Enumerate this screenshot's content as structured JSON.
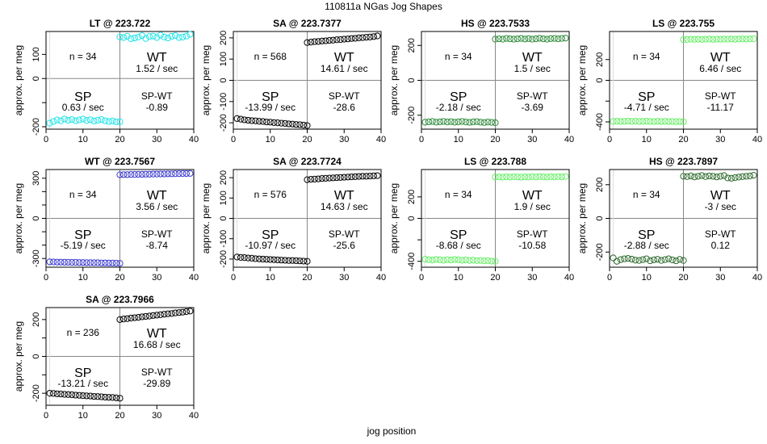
{
  "figure": {
    "title": "110811a    NGas Jog Shapes",
    "xlabel": "jog position",
    "ylabel": "approx. per meg"
  },
  "chart_data": [
    {
      "type": "scatter",
      "title": "LT @ 223.722",
      "color": "#22e4e8",
      "xlim": [
        0,
        40
      ],
      "ylim": [
        -210,
        195
      ],
      "yticks": [
        -200,
        -100,
        0,
        100
      ],
      "ytick_labels": [
        "-200",
        "",
        "0",
        "100"
      ],
      "xticks": [
        0,
        10,
        20,
        30,
        40
      ],
      "n_text": "n = 34",
      "wt_label": "WT",
      "wt_rate": "1.52 / sec",
      "sp_label": "SP",
      "sp_rate": "0.63 / sec",
      "spwt_label": "SP-WT",
      "spwt_value": "-0.89",
      "sp_x": [
        1,
        2,
        3,
        4,
        5,
        6,
        7,
        8,
        9,
        10,
        11,
        12,
        13,
        14,
        15,
        16,
        17,
        18,
        19,
        20
      ],
      "sp_y": [
        -185,
        -178,
        -172,
        -175,
        -168,
        -173,
        -170,
        -175,
        -172,
        -168,
        -174,
        -171,
        -176,
        -173,
        -170,
        -175,
        -178,
        -176,
        -180,
        -179
      ],
      "wt_x": [
        20,
        21,
        22,
        23,
        24,
        25,
        26,
        27,
        28,
        29,
        30,
        31,
        32,
        33,
        34,
        35,
        36,
        37,
        38,
        39
      ],
      "wt_y": [
        172,
        170,
        175,
        165,
        168,
        172,
        178,
        166,
        174,
        176,
        170,
        180,
        172,
        168,
        175,
        178,
        170,
        172,
        176,
        183
      ]
    },
    {
      "type": "scatter",
      "title": "SA @ 223.7377",
      "color": "#000000",
      "xlim": [
        0,
        40
      ],
      "ylim": [
        -230,
        230
      ],
      "yticks": [
        -200,
        -100,
        0,
        100,
        200
      ],
      "ytick_labels": [
        "-200",
        "-100",
        "0",
        "100",
        "200"
      ],
      "xticks": [
        0,
        10,
        20,
        30,
        40
      ],
      "n_text": "n = 568",
      "wt_label": "WT",
      "wt_rate": "14.61 / sec",
      "sp_label": "SP",
      "sp_rate": "-13.99 / sec",
      "spwt_label": "SP-WT",
      "spwt_value": "-28.6",
      "sp_x": [
        1,
        2,
        3,
        4,
        5,
        6,
        7,
        8,
        9,
        10,
        11,
        12,
        13,
        14,
        15,
        16,
        17,
        18,
        19,
        20
      ],
      "sp_y": [
        -180,
        -183,
        -186,
        -188,
        -190,
        -191,
        -193,
        -194,
        -196,
        -197,
        -199,
        -200,
        -202,
        -203,
        -205,
        -206,
        -208,
        -209,
        -211,
        -213
      ],
      "wt_x": [
        20,
        21,
        22,
        23,
        24,
        25,
        26,
        27,
        28,
        29,
        30,
        31,
        32,
        33,
        34,
        35,
        36,
        37,
        38,
        39
      ],
      "wt_y": [
        178,
        180,
        182,
        183,
        185,
        186,
        188,
        189,
        191,
        192,
        194,
        195,
        197,
        198,
        200,
        201,
        203,
        204,
        206,
        209
      ]
    },
    {
      "type": "scatter",
      "title": "HS @ 223.7533",
      "color": "#2e8b3a",
      "xlim": [
        0,
        40
      ],
      "ylim": [
        -280,
        280
      ],
      "yticks": [
        -200,
        0,
        200
      ],
      "ytick_labels": [
        "-200",
        "0",
        "200"
      ],
      "xticks": [
        0,
        10,
        20,
        30,
        40
      ],
      "n_text": "n = 34",
      "wt_label": "WT",
      "wt_rate": "1.5 / sec",
      "sp_label": "SP",
      "sp_rate": "-2.18 / sec",
      "spwt_label": "SP-WT",
      "spwt_value": "-3.69",
      "sp_x": [
        1,
        2,
        3,
        4,
        5,
        6,
        7,
        8,
        9,
        10,
        11,
        12,
        13,
        14,
        15,
        16,
        17,
        18,
        19,
        20
      ],
      "sp_y": [
        -240,
        -238,
        -236,
        -240,
        -238,
        -236,
        -239,
        -237,
        -240,
        -238,
        -236,
        -239,
        -241,
        -238,
        -237,
        -240,
        -242,
        -239,
        -241,
        -243
      ],
      "wt_x": [
        20,
        21,
        22,
        23,
        24,
        25,
        26,
        27,
        28,
        29,
        30,
        31,
        32,
        33,
        34,
        35,
        36,
        37,
        38,
        39
      ],
      "wt_y": [
        236,
        238,
        236,
        240,
        238,
        236,
        238,
        240,
        237,
        239,
        236,
        238,
        241,
        238,
        236,
        239,
        240,
        238,
        240,
        242
      ]
    },
    {
      "type": "scatter",
      "title": "LS @ 223.755",
      "color": "#66ee66",
      "xlim": [
        0,
        40
      ],
      "ylim": [
        -470,
        470
      ],
      "yticks": [
        -400,
        -200,
        0,
        200
      ],
      "ytick_labels": [
        "-400",
        "",
        "0",
        "200"
      ],
      "xticks": [
        0,
        10,
        20,
        30,
        40
      ],
      "n_text": "n = 34",
      "wt_label": "WT",
      "wt_rate": "6.46 / sec",
      "sp_label": "SP",
      "sp_rate": "-4.71 / sec",
      "spwt_label": "SP-WT",
      "spwt_value": "-11.17",
      "sp_x": [
        1,
        2,
        3,
        4,
        5,
        6,
        7,
        8,
        9,
        10,
        11,
        12,
        13,
        14,
        15,
        16,
        17,
        18,
        19,
        20
      ],
      "sp_y": [
        -395,
        -393,
        -396,
        -394,
        -392,
        -395,
        -393,
        -396,
        -394,
        -393,
        -395,
        -397,
        -394,
        -396,
        -395,
        -397,
        -396,
        -398,
        -397,
        -399
      ],
      "wt_x": [
        20,
        21,
        22,
        23,
        24,
        25,
        26,
        27,
        28,
        29,
        30,
        31,
        32,
        33,
        34,
        35,
        36,
        37,
        38,
        39
      ],
      "wt_y": [
        392,
        393,
        395,
        394,
        396,
        393,
        395,
        397,
        394,
        396,
        395,
        397,
        396,
        398,
        395,
        397,
        398,
        396,
        399,
        400
      ]
    },
    {
      "type": "scatter",
      "title": "WT @ 223.7567",
      "color": "#3a3ad0",
      "xlim": [
        0,
        40
      ],
      "ylim": [
        -365,
        365
      ],
      "yticks": [
        -300,
        -200,
        -100,
        0,
        100,
        200,
        300
      ],
      "ytick_labels": [
        "-300",
        "",
        "",
        "0",
        "",
        "",
        "300"
      ],
      "xticks": [
        0,
        10,
        20,
        30,
        40
      ],
      "n_text": "n = 34",
      "wt_label": "WT",
      "wt_rate": "3.56 / sec",
      "sp_label": "SP",
      "sp_rate": "-5.19 / sec",
      "spwt_label": "SP-WT",
      "spwt_value": "-8.74",
      "sp_x": [
        1,
        2,
        3,
        4,
        5,
        6,
        7,
        8,
        9,
        10,
        11,
        12,
        13,
        14,
        15,
        16,
        17,
        18,
        19,
        20
      ],
      "sp_y": [
        -325,
        -326,
        -327,
        -327,
        -328,
        -328,
        -329,
        -329,
        -330,
        -330,
        -331,
        -331,
        -332,
        -332,
        -333,
        -333,
        -334,
        -334,
        -335,
        -336
      ],
      "wt_x": [
        20,
        21,
        22,
        23,
        24,
        25,
        26,
        27,
        28,
        29,
        30,
        31,
        32,
        33,
        34,
        35,
        36,
        37,
        38,
        39
      ],
      "wt_y": [
        326,
        327,
        327,
        328,
        328,
        329,
        329,
        330,
        330,
        331,
        331,
        332,
        332,
        333,
        333,
        334,
        334,
        335,
        335,
        336
      ]
    },
    {
      "type": "scatter",
      "title": "SA @ 223.7724",
      "color": "#000000",
      "xlim": [
        0,
        40
      ],
      "ylim": [
        -240,
        240
      ],
      "yticks": [
        -200,
        -100,
        0,
        100,
        200
      ],
      "ytick_labels": [
        "-200",
        "-100",
        "0",
        "100",
        "200"
      ],
      "xticks": [
        0,
        10,
        20,
        30,
        40
      ],
      "n_text": "n = 576",
      "wt_label": "WT",
      "wt_rate": "14.63 / sec",
      "sp_label": "SP",
      "sp_rate": "-10.97 / sec",
      "spwt_label": "SP-WT",
      "spwt_value": "-25.6",
      "sp_x": [
        1,
        2,
        3,
        4,
        5,
        6,
        7,
        8,
        9,
        10,
        11,
        12,
        13,
        14,
        15,
        16,
        17,
        18,
        19,
        20
      ],
      "sp_y": [
        -190,
        -192,
        -193,
        -195,
        -196,
        -198,
        -199,
        -200,
        -201,
        -202,
        -203,
        -204,
        -205,
        -206,
        -207,
        -207,
        -208,
        -209,
        -210,
        -211
      ],
      "wt_x": [
        20,
        21,
        22,
        23,
        24,
        25,
        26,
        27,
        28,
        29,
        30,
        31,
        32,
        33,
        34,
        35,
        36,
        37,
        38,
        39
      ],
      "wt_y": [
        190,
        192,
        193,
        194,
        196,
        197,
        198,
        199,
        200,
        201,
        202,
        203,
        204,
        205,
        206,
        207,
        207,
        208,
        209,
        210
      ]
    },
    {
      "type": "scatter",
      "title": "LS @ 223.788",
      "color": "#66ee66",
      "xlim": [
        0,
        40
      ],
      "ylim": [
        -455,
        455
      ],
      "yticks": [
        -400,
        -200,
        0,
        200
      ],
      "ytick_labels": [
        "-400",
        "",
        "0",
        "200"
      ],
      "xticks": [
        0,
        10,
        20,
        30,
        40
      ],
      "n_text": "n = 34",
      "wt_label": "WT",
      "wt_rate": "1.9 / sec",
      "sp_label": "SP",
      "sp_rate": "-8.68 / sec",
      "spwt_label": "SP-WT",
      "spwt_value": "-10.58",
      "sp_x": [
        1,
        2,
        3,
        4,
        5,
        6,
        7,
        8,
        9,
        10,
        11,
        12,
        13,
        14,
        15,
        16,
        17,
        18,
        19,
        20
      ],
      "sp_y": [
        -380,
        -385,
        -388,
        -382,
        -386,
        -390,
        -385,
        -388,
        -383,
        -386,
        -390,
        -387,
        -392,
        -389,
        -394,
        -392,
        -396,
        -394,
        -398,
        -400
      ],
      "wt_x": [
        20,
        21,
        22,
        23,
        24,
        25,
        26,
        27,
        28,
        29,
        30,
        31,
        32,
        33,
        34,
        35,
        36,
        37,
        38,
        39
      ],
      "wt_y": [
        385,
        386,
        384,
        387,
        385,
        388,
        386,
        384,
        387,
        385,
        388,
        386,
        389,
        387,
        385,
        388,
        386,
        389,
        387,
        390
      ]
    },
    {
      "type": "scatter",
      "title": "HS @ 223.7897",
      "color": "#2e6b2e",
      "xlim": [
        0,
        40
      ],
      "ylim": [
        -290,
        290
      ],
      "yticks": [
        -200,
        0,
        200
      ],
      "ytick_labels": [
        "-200",
        "0",
        "200"
      ],
      "xticks": [
        0,
        10,
        20,
        30,
        40
      ],
      "n_text": "n = 34",
      "wt_label": "WT",
      "wt_rate": "-3 / sec",
      "sp_label": "SP",
      "sp_rate": "-2.88 / sec",
      "spwt_label": "SP-WT",
      "spwt_value": "0.12",
      "sp_x": [
        1,
        2,
        3,
        4,
        5,
        6,
        7,
        8,
        9,
        10,
        11,
        12,
        13,
        14,
        15,
        16,
        17,
        18,
        19,
        20
      ],
      "sp_y": [
        -235,
        -255,
        -245,
        -240,
        -238,
        -242,
        -248,
        -250,
        -245,
        -240,
        -252,
        -246,
        -243,
        -250,
        -245,
        -240,
        -247,
        -252,
        -244,
        -250
      ],
      "wt_x": [
        20,
        21,
        22,
        23,
        24,
        25,
        26,
        27,
        28,
        29,
        30,
        31,
        32,
        33,
        34,
        35,
        36,
        37,
        38,
        39
      ],
      "wt_y": [
        250,
        248,
        252,
        246,
        250,
        254,
        248,
        252,
        250,
        246,
        250,
        254,
        240,
        238,
        242,
        245,
        248,
        250,
        252,
        256
      ]
    },
    {
      "type": "scatter",
      "title": "SA @ 223.7966",
      "color": "#000000",
      "xlim": [
        0,
        40
      ],
      "ylim": [
        -265,
        265
      ],
      "yticks": [
        -200,
        -100,
        0,
        100,
        200
      ],
      "ytick_labels": [
        "-200",
        "",
        "0",
        "",
        "200"
      ],
      "xticks": [
        0,
        10,
        20,
        30,
        40
      ],
      "n_text": "n = 236",
      "wt_label": "WT",
      "wt_rate": "16.68 / sec",
      "sp_label": "SP",
      "sp_rate": "-13.21 / sec",
      "spwt_label": "SP-WT",
      "spwt_value": "-29.89",
      "sp_x": [
        1,
        2,
        3,
        4,
        5,
        6,
        7,
        8,
        9,
        10,
        11,
        12,
        13,
        14,
        15,
        16,
        17,
        18,
        19,
        20
      ],
      "sp_y": [
        -200,
        -201,
        -203,
        -204,
        -206,
        -207,
        -208,
        -210,
        -211,
        -213,
        -214,
        -215,
        -217,
        -218,
        -219,
        -221,
        -222,
        -223,
        -225,
        -227
      ],
      "wt_x": [
        20,
        21,
        22,
        23,
        24,
        25,
        26,
        27,
        28,
        29,
        30,
        31,
        32,
        33,
        34,
        35,
        36,
        37,
        38,
        39
      ],
      "wt_y": [
        200,
        203,
        205,
        208,
        210,
        212,
        215,
        217,
        219,
        222,
        224,
        226,
        229,
        231,
        233,
        236,
        238,
        240,
        243,
        246
      ]
    }
  ]
}
